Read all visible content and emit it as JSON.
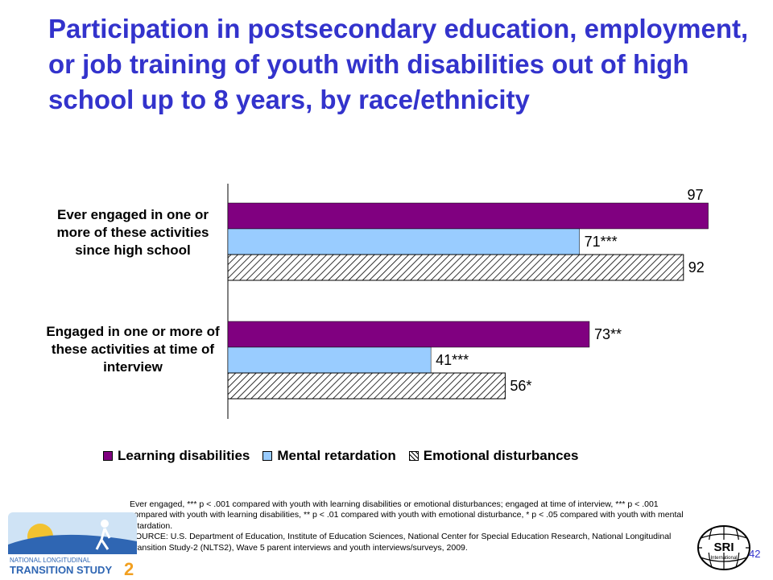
{
  "page": {
    "title": "Participation in postsecondary education, employment, or job training of youth with disabilities out of high school up to 8 years, by race/ethnicity",
    "page_number": "42",
    "footnote_lines": [
      "Ever engaged, *** p < .001 compared with youth with learning disabilities or emotional disturbances; engaged at time of interview, *** p < .001 compared with youth with learning disabilities, ** p < .01 compared with youth with emotional disturbance, * p < .05 compared with youth with mental retardation.",
      "SOURCE: U.S. Department of Education, Institute of Education Sciences, National Center for Special Education Research, National Longitudinal Transition Study-2 (NLTS2), Wave 5 parent interviews and youth interviews/surveys, 2009."
    ],
    "logos": {
      "nlts2_text_line1": "NATIONAL LONGITUDINAL",
      "nlts2_text_line2": "TRANSITION STUDY",
      "nlts2_text_num": "2",
      "sri_text": "SRI",
      "sri_subtext": "International"
    },
    "colors": {
      "title": "#3333cc",
      "learning": "#800080",
      "mental": "#99ccff",
      "emotional_hatch": "#000000"
    }
  },
  "chart_data": {
    "type": "bar",
    "orientation": "horizontal",
    "categories": [
      "Ever engaged in one or more of these activities since high school",
      "Engaged in one or more of these activities at time of interview"
    ],
    "series": [
      {
        "name": "Learning disabilities",
        "values": [
          97,
          73
        ],
        "labels": [
          "97",
          "73**"
        ],
        "color": "#800080",
        "fill": "solid"
      },
      {
        "name": "Mental retardation",
        "values": [
          71,
          41
        ],
        "labels": [
          "71***",
          "41***"
        ],
        "color": "#99ccff",
        "fill": "solid"
      },
      {
        "name": "Emotional disturbances",
        "values": [
          92,
          56
        ],
        "labels": [
          "92",
          "56*"
        ],
        "color": "#ffffff",
        "fill": "hatched"
      }
    ],
    "xlim": [
      0,
      100
    ],
    "grid": false,
    "legend_position": "bottom"
  }
}
